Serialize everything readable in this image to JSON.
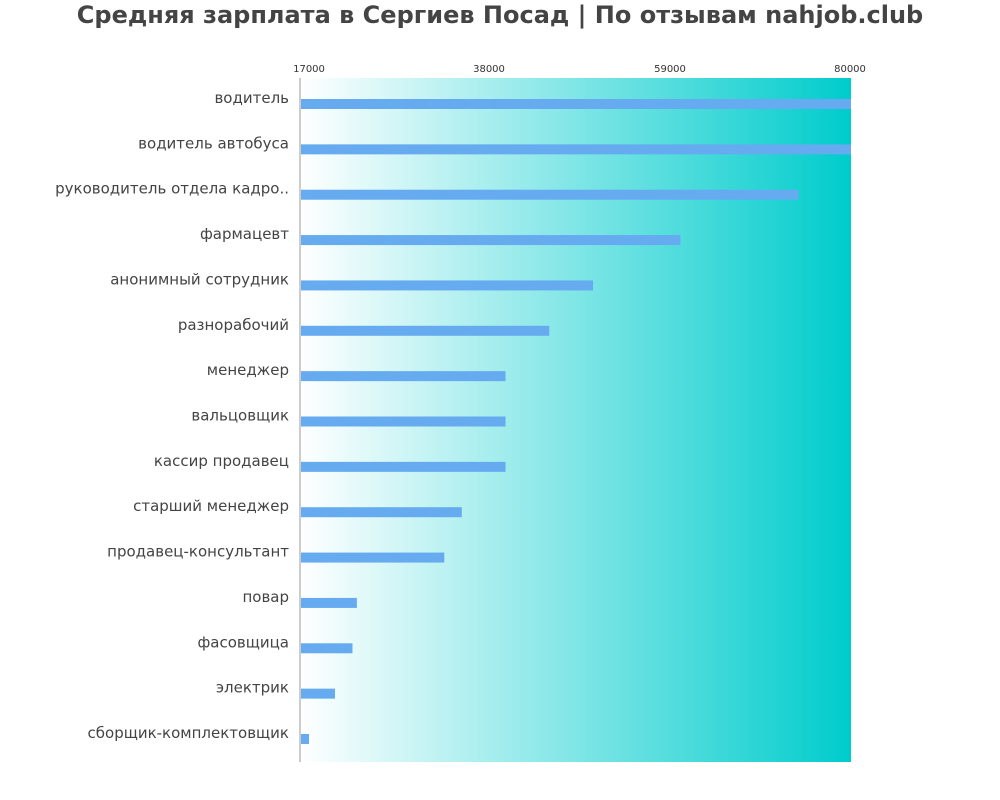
{
  "chart_data": {
    "type": "bar",
    "orientation": "horizontal",
    "title": "Средняя зарплата в Сергиев Посад | По отзывам nahjob.club",
    "xlabel": "",
    "ylabel": "",
    "xlim": [
      17000,
      80000
    ],
    "x_ticks": [
      "17000",
      "38000",
      "59000",
      "80000"
    ],
    "categories": [
      "водитель",
      "водитель автобуса",
      "руководитель отдела кадро..",
      "фармацевт",
      "анонимный сотрудник",
      "разнорабочий",
      "менеджер",
      "вальцовщик",
      "кассир продавец",
      "старший менеджер",
      "продавец-консультант",
      "повар",
      "фасовщица",
      "электрик",
      "сборщик-комплектовщик"
    ],
    "values": [
      80000,
      80000,
      74000,
      60500,
      50500,
      45500,
      40500,
      40500,
      40500,
      35500,
      33500,
      23500,
      23000,
      21000,
      18000
    ],
    "grid": false,
    "legend": "none",
    "colors": {
      "bar": "#66aaf0",
      "gradient_start": "#ffffff",
      "gradient_end": "#00cccc",
      "title": "#444444",
      "axis": "#999999"
    }
  }
}
